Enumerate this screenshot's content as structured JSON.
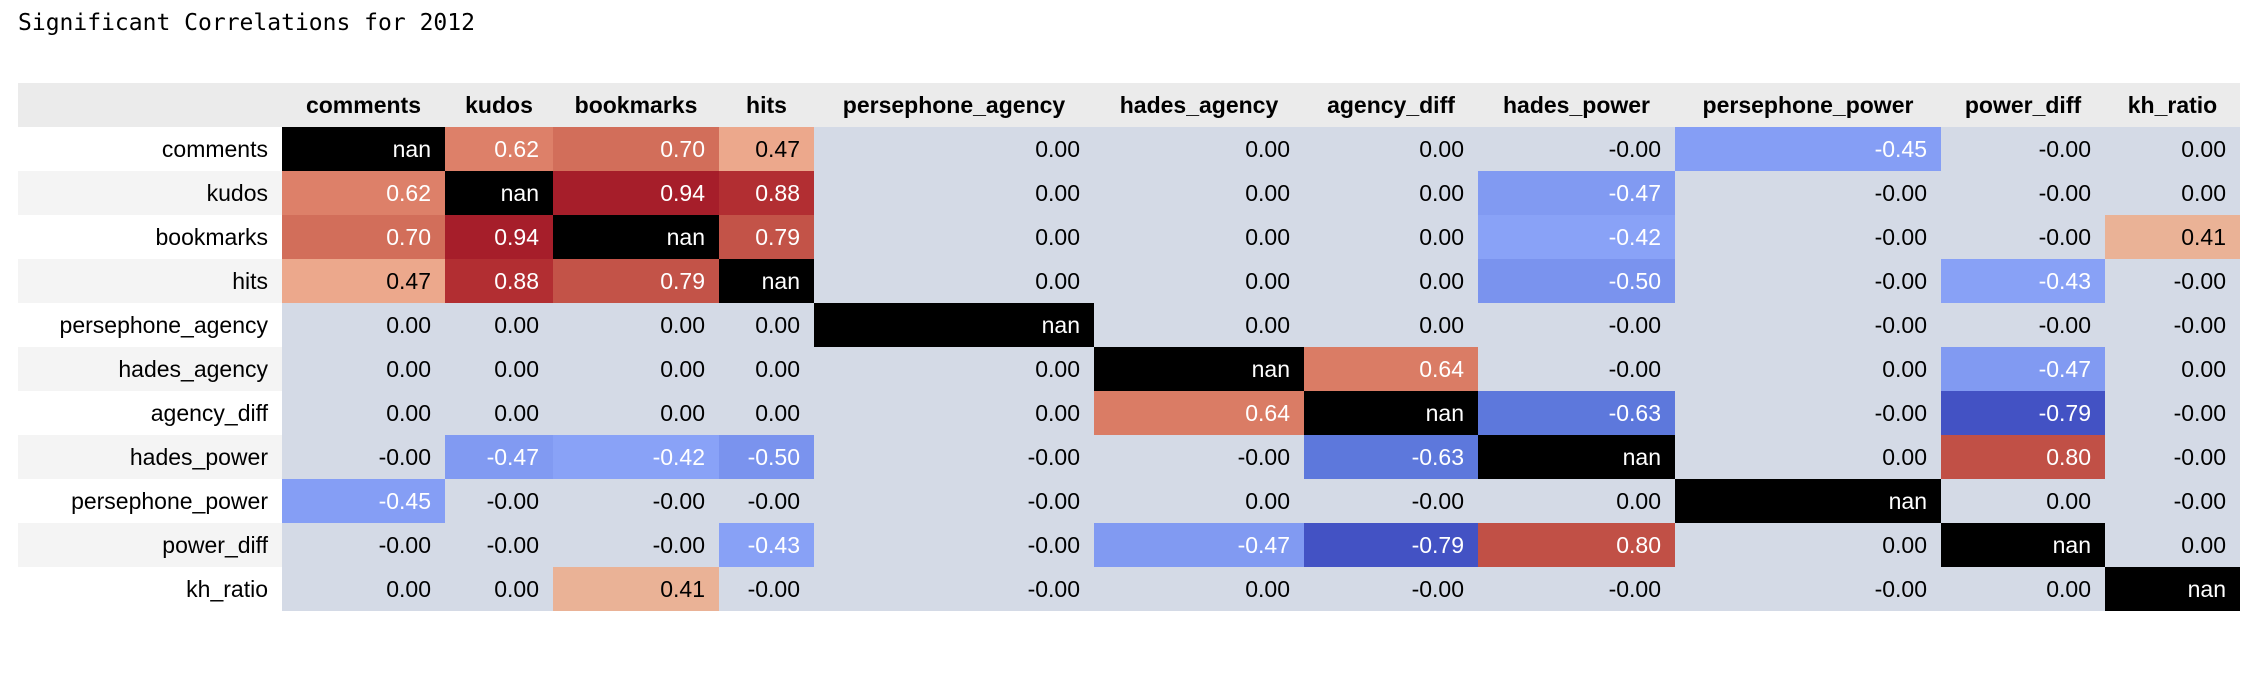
{
  "title": "Significant Correlations for 2012",
  "chart_data": {
    "type": "heatmap",
    "title": "Significant Correlations for 2012",
    "columns": [
      "comments",
      "kudos",
      "bookmarks",
      "hits",
      "persephone_agency",
      "hades_agency",
      "agency_diff",
      "hades_power",
      "persephone_power",
      "power_diff",
      "kh_ratio"
    ],
    "rows": [
      "comments",
      "kudos",
      "bookmarks",
      "hits",
      "persephone_agency",
      "hades_agency",
      "agency_diff",
      "hades_power",
      "persephone_power",
      "power_diff",
      "kh_ratio"
    ],
    "values": [
      [
        "nan",
        "0.62",
        "0.70",
        "0.47",
        "0.00",
        "0.00",
        "0.00",
        "-0.00",
        "-0.45",
        "-0.00",
        "0.00"
      ],
      [
        "0.62",
        "nan",
        "0.94",
        "0.88",
        "0.00",
        "0.00",
        "0.00",
        "-0.47",
        "-0.00",
        "-0.00",
        "0.00"
      ],
      [
        "0.70",
        "0.94",
        "nan",
        "0.79",
        "0.00",
        "0.00",
        "0.00",
        "-0.42",
        "-0.00",
        "-0.00",
        "0.41"
      ],
      [
        "0.47",
        "0.88",
        "0.79",
        "nan",
        "0.00",
        "0.00",
        "0.00",
        "-0.50",
        "-0.00",
        "-0.43",
        "-0.00"
      ],
      [
        "0.00",
        "0.00",
        "0.00",
        "0.00",
        "nan",
        "0.00",
        "0.00",
        "-0.00",
        "-0.00",
        "-0.00",
        "-0.00"
      ],
      [
        "0.00",
        "0.00",
        "0.00",
        "0.00",
        "0.00",
        "nan",
        "0.64",
        "-0.00",
        "0.00",
        "-0.47",
        "0.00"
      ],
      [
        "0.00",
        "0.00",
        "0.00",
        "0.00",
        "0.00",
        "0.64",
        "nan",
        "-0.63",
        "-0.00",
        "-0.79",
        "-0.00"
      ],
      [
        "-0.00",
        "-0.47",
        "-0.42",
        "-0.50",
        "-0.00",
        "-0.00",
        "-0.63",
        "nan",
        "0.00",
        "0.80",
        "-0.00"
      ],
      [
        "-0.45",
        "-0.00",
        "-0.00",
        "-0.00",
        "-0.00",
        "0.00",
        "-0.00",
        "0.00",
        "nan",
        "0.00",
        "-0.00"
      ],
      [
        "-0.00",
        "-0.00",
        "-0.00",
        "-0.43",
        "-0.00",
        "-0.47",
        "-0.79",
        "0.80",
        "0.00",
        "nan",
        "0.00"
      ],
      [
        "0.00",
        "0.00",
        "0.41",
        "-0.00",
        "-0.00",
        "0.00",
        "-0.00",
        "-0.00",
        "-0.00",
        "0.00",
        "nan"
      ]
    ],
    "colormap": "coolwarm",
    "vmin": -1,
    "vmax": 1,
    "nan_color": "#000000",
    "zero_color": "#d4dae6"
  }
}
